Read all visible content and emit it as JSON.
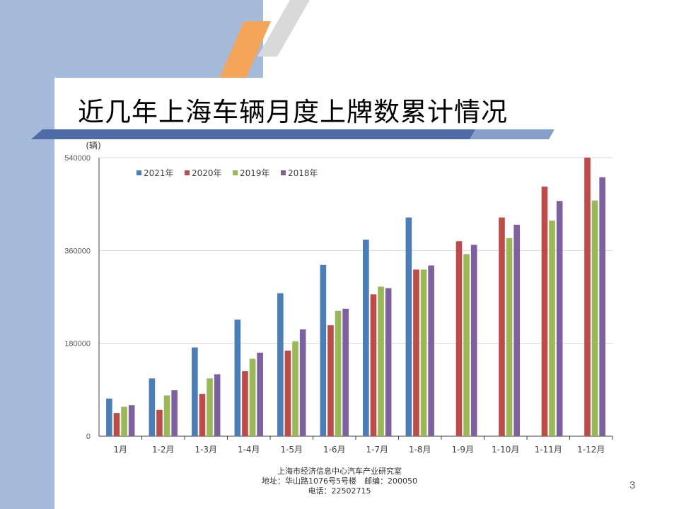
{
  "slide": {
    "title": "近几年上海车辆月度上牌数累计情况",
    "page_number": "3",
    "footer": {
      "line1": "上海市经济信息中心汽车产业研究室",
      "line2": "地址：华山路1076号5号楼　邮编：200050",
      "line3": "电话：22502715"
    }
  },
  "colors": {
    "background_band": "#a6bad9",
    "accent_orange": "#f5a55a",
    "accent_gray": "#d9d9d9",
    "title_bar": "#4f6ca6"
  },
  "chart_data": {
    "type": "bar",
    "unit_label": "(辆)",
    "categories": [
      "1月",
      "1-2月",
      "1-3月",
      "1-4月",
      "1-5月",
      "1-6月",
      "1-7月",
      "1-8月",
      "1-9月",
      "1-10月",
      "1-11月",
      "1-12月"
    ],
    "series": [
      {
        "name": "2021年",
        "color": "#4a7ebb",
        "values": [
          73000,
          112000,
          172000,
          226000,
          277000,
          332000,
          381000,
          424000,
          null,
          null,
          null,
          null
        ]
      },
      {
        "name": "2020年",
        "color": "#be4b48",
        "values": [
          45000,
          51000,
          82000,
          126000,
          166000,
          215000,
          275000,
          323000,
          378000,
          424000,
          484000,
          540000
        ]
      },
      {
        "name": "2019年",
        "color": "#98b954",
        "values": [
          57000,
          79000,
          112000,
          150000,
          184000,
          243000,
          290000,
          323000,
          353000,
          384000,
          418000,
          457000
        ]
      },
      {
        "name": "2018年",
        "color": "#7d60a0",
        "values": [
          60000,
          89000,
          120000,
          162000,
          207000,
          247000,
          287000,
          331000,
          371000,
          410000,
          456000,
          502000
        ]
      }
    ],
    "yticks": [
      "0",
      "180000",
      "360000",
      "540000"
    ],
    "ylim": [
      0,
      540000
    ],
    "grid": true,
    "legend_position": "top-left"
  }
}
